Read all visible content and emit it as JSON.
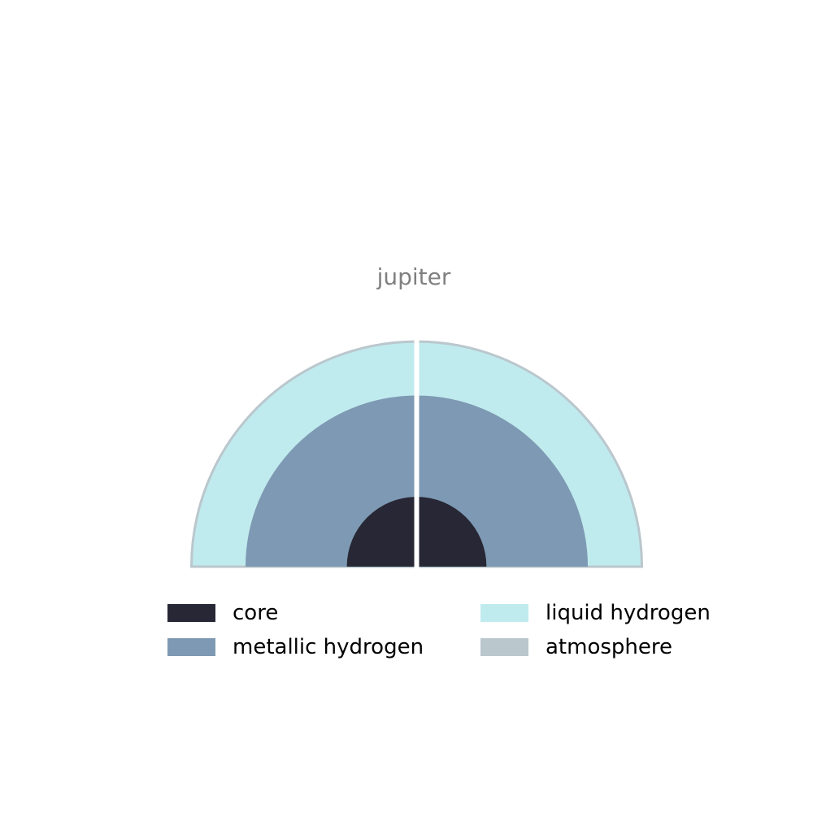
{
  "title": "jupiter",
  "layers": [
    {
      "name": "core",
      "color": "#272735"
    },
    {
      "name": "metallic hydrogen",
      "color": "#7e99b3"
    },
    {
      "name": "liquid hydrogen",
      "color": "#c0ebee"
    },
    {
      "name": "atmosphere",
      "color": "#bac7cd"
    }
  ],
  "relative_radius": {
    "core": 0.31,
    "metallic hydrogen": 0.76,
    "liquid hydrogen": 1.0
  },
  "legend": {
    "items": [
      {
        "label": "core",
        "color": "#272735"
      },
      {
        "label": "metallic hydrogen",
        "color": "#7e99b3"
      },
      {
        "label": "liquid hydrogen",
        "color": "#c0ebee"
      },
      {
        "label": "atmosphere",
        "color": "#bac7cd"
      }
    ]
  }
}
